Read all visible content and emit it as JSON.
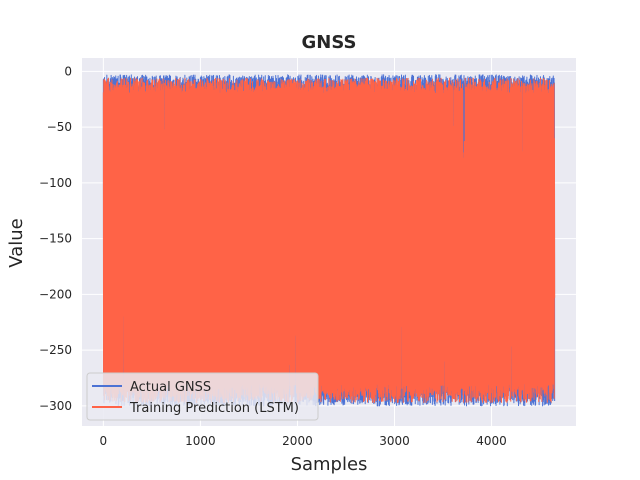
{
  "chart_data": {
    "type": "line",
    "title": "GNSS",
    "xlabel": "Samples",
    "ylabel": "Value",
    "xlim": [
      -220,
      4870
    ],
    "ylim": [
      -318,
      12
    ],
    "x_ticks": [
      0,
      1000,
      2000,
      3000,
      4000
    ],
    "y_ticks": [
      0,
      -50,
      -100,
      -150,
      -200,
      -250,
      -300
    ],
    "x_tick_labels": [
      "0",
      "1000",
      "2000",
      "3000",
      "4000"
    ],
    "y_tick_labels": [
      "0",
      "−50",
      "−100",
      "−150",
      "−200",
      "−250",
      "−300"
    ],
    "grid": true,
    "legend_position": "lower-left",
    "n_samples": 4650,
    "series": [
      {
        "name": "Actual GNSS",
        "color": "#4c72d4",
        "upper_envelope_range": [
          -15,
          -3
        ],
        "lower_envelope_range": [
          -300,
          -285
        ]
      },
      {
        "name": "Training Prediction (LSTM)",
        "color": "#ff6347",
        "upper_envelope_range": [
          -20,
          -6
        ],
        "lower_envelope_range": [
          -297,
          -280
        ]
      }
    ]
  }
}
